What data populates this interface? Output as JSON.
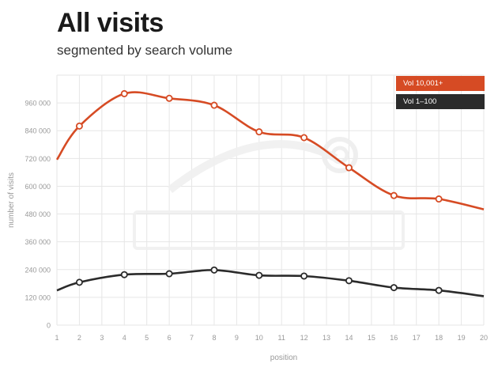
{
  "title": "All visits",
  "subtitle": "segmented by search volume",
  "colors": {
    "series1": "#d64b24",
    "series2": "#2b2b2b",
    "grid": "#e6e6e6",
    "axis": "#999999"
  },
  "chart_data": {
    "type": "line",
    "title": "All visits",
    "subtitle": "segmented by search volume",
    "xlabel": "position",
    "ylabel": "number of visits",
    "x": [
      1,
      2,
      3,
      4,
      5,
      6,
      7,
      8,
      9,
      10,
      11,
      12,
      13,
      14,
      15,
      16,
      17,
      18,
      19,
      20
    ],
    "xlim": [
      1,
      20
    ],
    "ylim": [
      0,
      1080000
    ],
    "yticks": [
      0,
      120000,
      240000,
      360000,
      480000,
      600000,
      720000,
      840000,
      960000
    ],
    "ytick_labels": [
      "0",
      "120 000",
      "240 000",
      "360 000",
      "480 000",
      "600 000",
      "720 000",
      "840 000",
      "960 000"
    ],
    "xtick_labels": [
      "1",
      "2",
      "3",
      "4",
      "5",
      "6",
      "7",
      "8",
      "9",
      "10",
      "11",
      "12",
      "13",
      "14",
      "15",
      "16",
      "17",
      "18",
      "19",
      "20"
    ],
    "grid": true,
    "legend_position": "top-right",
    "series": [
      {
        "name": "Vol 10,001+",
        "points": [
          [
            1,
            715000
          ],
          [
            2,
            860000
          ],
          [
            4,
            1000000
          ],
          [
            6,
            980000
          ],
          [
            8,
            950000
          ],
          [
            10,
            835000
          ],
          [
            12,
            810000
          ],
          [
            14,
            680000
          ],
          [
            16,
            560000
          ],
          [
            18,
            545000
          ],
          [
            20,
            500000
          ]
        ],
        "markers": [
          2,
          4,
          6,
          8,
          10,
          12,
          14,
          16,
          18
        ]
      },
      {
        "name": "Vol 1–100",
        "points": [
          [
            1,
            150000
          ],
          [
            2,
            185000
          ],
          [
            4,
            218000
          ],
          [
            6,
            222000
          ],
          [
            8,
            238000
          ],
          [
            10,
            215000
          ],
          [
            12,
            212000
          ],
          [
            14,
            192000
          ],
          [
            16,
            162000
          ],
          [
            18,
            150000
          ],
          [
            20,
            125000
          ]
        ],
        "markers": [
          2,
          4,
          6,
          8,
          10,
          12,
          14,
          16,
          18
        ]
      }
    ]
  }
}
